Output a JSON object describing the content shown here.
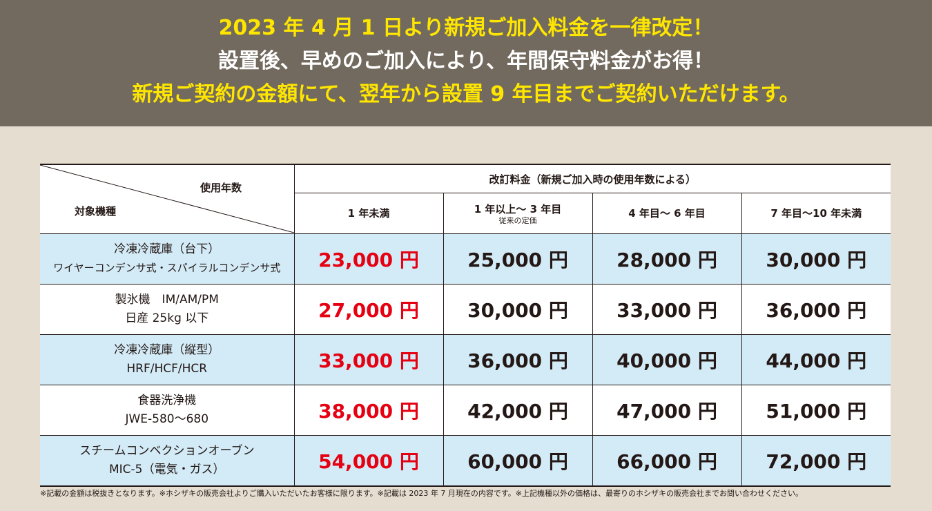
{
  "banner": {
    "line1": "2023 年 4 月 1 日より新規ご加入料金を一律改定！",
    "line2": "設置後、早めのご加入により、年間保守料金がお得！",
    "line3": "新規ご契約の金額にて、翌年から設置 9 年目までご契約いただけます。"
  },
  "table": {
    "corner_years": "使用年数",
    "corner_target": "対象機種",
    "group_header": "改訂料金（新規ご加入時の使用年数による）",
    "columns": [
      {
        "label": "1 年未満",
        "note": ""
      },
      {
        "label": "1 年以上～ 3 年目",
        "note": "従来の定価"
      },
      {
        "label": "4 年目～ 6 年目",
        "note": ""
      },
      {
        "label": "7 年目～10 年未満",
        "note": ""
      }
    ],
    "rows": [
      {
        "model_line1": "冷凍冷蔵庫（台下）",
        "model_line2": "ワイヤーコンデンサ式・スパイラルコンデンサ式",
        "prices": [
          "23,000 円",
          "25,000 円",
          "28,000 円",
          "30,000 円"
        ]
      },
      {
        "model_line1": "製氷機　IM/AM/PM",
        "model_line2": "日産 25kg 以下",
        "prices": [
          "27,000 円",
          "30,000 円",
          "33,000 円",
          "36,000 円"
        ]
      },
      {
        "model_line1": "冷凍冷蔵庫（縦型）",
        "model_line2": "HRF/HCF/HCR",
        "prices": [
          "33,000 円",
          "36,000 円",
          "40,000 円",
          "44,000 円"
        ]
      },
      {
        "model_line1": "食器洗浄機",
        "model_line2": "JWE-580～680",
        "prices": [
          "38,000 円",
          "42,000 円",
          "47,000 円",
          "51,000 円"
        ]
      },
      {
        "model_line1": "スチームコンベクションオーブン",
        "model_line2": "MIC-5（電気・ガス）",
        "prices": [
          "54,000 円",
          "60,000 円",
          "66,000 円",
          "72,000 円"
        ]
      }
    ]
  },
  "footnote": "※記載の金額は税抜きとなります。※ホシザキの販売会社よりご購入いただいたお客様に限ります。※記載は 2023 年 7 月現在の内容です。※上記機種以外の価格は、最寄りのホシザキの販売会社までお問い合わせください。",
  "colors": {
    "banner_bg": "#726a5e",
    "highlight_yellow": "#ffe600",
    "price_red": "#e50012",
    "row_blue": "#d3ebf7",
    "page_bg": "#e4ddd0"
  }
}
